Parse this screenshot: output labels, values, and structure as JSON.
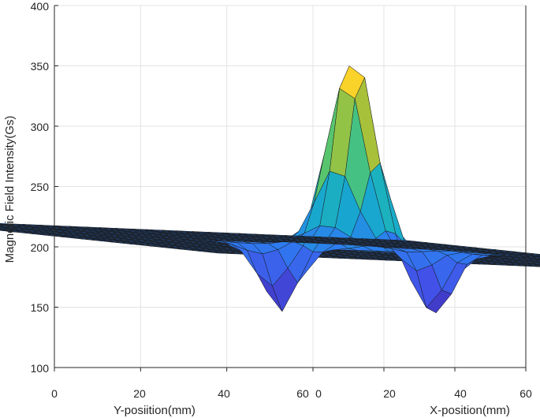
{
  "chart_data": {
    "type": "surface",
    "zlabel": "Magnetic Field Intensity(Gs)",
    "ylabel": "Y-posiition(mm)",
    "xlabel": "X-position(mm)",
    "zlim": [
      100,
      400
    ],
    "z_ticks": [
      "100",
      "150",
      "200",
      "250",
      "300",
      "350",
      "400"
    ],
    "y_ticks": [
      "0",
      "20",
      "40",
      "60"
    ],
    "x_ticks": [
      "0",
      "20",
      "40",
      "60"
    ],
    "xlim": [
      0,
      60
    ],
    "ylim": [
      0,
      60
    ],
    "grid": true,
    "colormap": [
      "#3e26a8",
      "#4350e7",
      "#2e7bf0",
      "#18a5d3",
      "#20bcad",
      "#64c761",
      "#c4be29",
      "#f9d02c",
      "#f9fb14"
    ],
    "baseline": 200,
    "peak": {
      "value": 362
    },
    "troughs": [
      {
        "value": 145
      },
      {
        "value": 145
      }
    ]
  }
}
